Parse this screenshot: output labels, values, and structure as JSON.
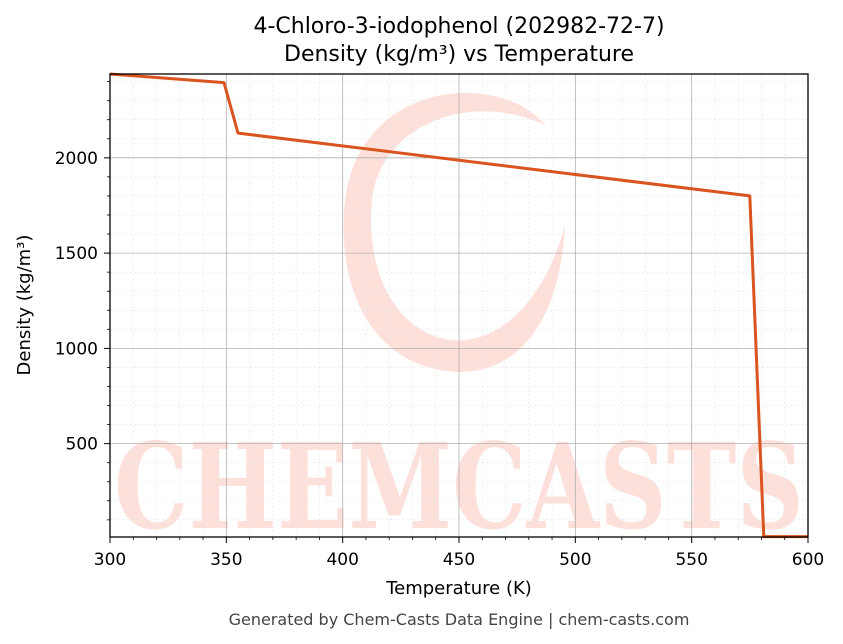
{
  "chart_data": {
    "type": "line",
    "title_line1": "4-Chloro-3-iodophenol (202982-72-7)",
    "title_line2": "Density (kg/m³) vs Temperature",
    "xlabel": "Temperature (K)",
    "ylabel": "Density (kg/m³)",
    "xlim": [
      300,
      600
    ],
    "ylim": [
      10,
      2440
    ],
    "xticks": [
      300,
      350,
      400,
      450,
      500,
      550,
      600
    ],
    "yticks": [
      500,
      1000,
      1500,
      2000
    ],
    "grid": true,
    "line_color": "#d9541e",
    "series": [
      {
        "x": [
          300,
          349,
          355,
          575,
          581,
          600
        ],
        "values": [
          2440,
          2395,
          2130,
          1800,
          12,
          12
        ]
      }
    ]
  },
  "watermark": {
    "text": "CHEMCASTS",
    "color": "#fde0da"
  },
  "footer": "Generated by Chem-Casts Data Engine | chem-casts.com"
}
